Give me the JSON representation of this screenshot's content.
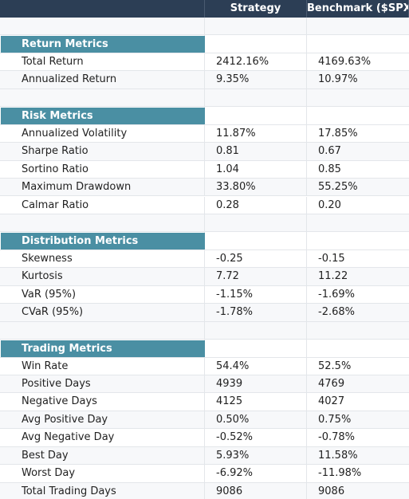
{
  "table": {
    "headers": [
      "Strategy",
      "Benchmark ($SPX)"
    ],
    "sections": [
      {
        "title": "Return Metrics",
        "rows": [
          [
            "Total Return",
            "2412.16%",
            "4169.63%"
          ],
          [
            "Annualized Return",
            "9.35%",
            "10.97%"
          ]
        ]
      },
      {
        "title": "Risk Metrics",
        "rows": [
          [
            "Annualized Volatility",
            "11.87%",
            "17.85%"
          ],
          [
            "Sharpe Ratio",
            "0.81",
            "0.67"
          ],
          [
            "Sortino Ratio",
            "1.04",
            "0.85"
          ],
          [
            "Maximum Drawdown",
            "33.80%",
            "55.25%"
          ],
          [
            "Calmar Ratio",
            "0.28",
            "0.20"
          ]
        ]
      },
      {
        "title": "Distribution Metrics",
        "rows": [
          [
            "Skewness",
            "-0.25",
            "-0.15"
          ],
          [
            "Kurtosis",
            "7.72",
            "11.22"
          ],
          [
            "VaR (95%)",
            "-1.15%",
            "-1.69%"
          ],
          [
            "CVaR (95%)",
            "-1.78%",
            "-2.68%"
          ]
        ]
      },
      {
        "title": "Trading Metrics",
        "rows": [
          [
            "Win Rate",
            "54.4%",
            "52.5%"
          ],
          [
            "Positive Days",
            "4939",
            "4769"
          ],
          [
            "Negative Days",
            "4125",
            "4027"
          ],
          [
            "Avg Positive Day",
            "0.50%",
            "0.75%"
          ],
          [
            "Avg Negative Day",
            "-0.52%",
            "-0.78%"
          ],
          [
            "Best Day",
            "5.93%",
            "11.58%"
          ],
          [
            "Worst Day",
            "-6.92%",
            "-11.98%"
          ],
          [
            "Total Trading Days",
            "9086",
            "9086"
          ]
        ]
      }
    ]
  }
}
